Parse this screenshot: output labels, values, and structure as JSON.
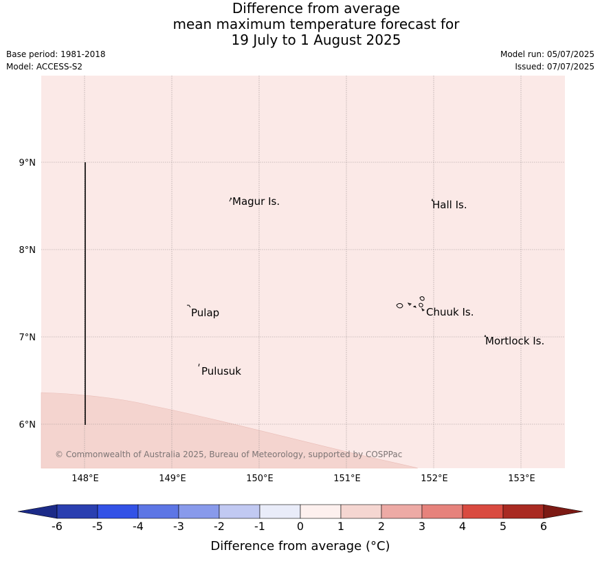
{
  "header": {
    "title_lines": [
      "Difference from average",
      "mean maximum temperature forecast for",
      "19 July to 1 August 2025"
    ],
    "base_period": "Base period: 1981-2018",
    "model": "Model: ACCESS-S2",
    "model_run": "Model run: 05/07/2025",
    "issued": "Issued: 07/07/2025"
  },
  "map": {
    "lon_ticks": [
      "148°E",
      "149°E",
      "150°E",
      "151°E",
      "152°E",
      "153°E"
    ],
    "lat_ticks": [
      "9°N",
      "8°N",
      "7°N",
      "6°N"
    ],
    "places": [
      {
        "name": "Magur Is."
      },
      {
        "name": "Hall Is."
      },
      {
        "name": "Pulap"
      },
      {
        "name": "Chuuk Is."
      },
      {
        "name": "Mortlock Is."
      },
      {
        "name": "Pulusuk"
      }
    ],
    "copyright": "© Commonwealth of Australia 2025, Bureau of Meteorology, supported by COSPPac",
    "background_color": "#fbe9e7",
    "warm_band_color": "#f4d4cf"
  },
  "colorbar": {
    "tick_labels": [
      "-6",
      "-5",
      "-4",
      "-3",
      "-2",
      "-1",
      "0",
      "1",
      "2",
      "3",
      "4",
      "5",
      "6"
    ],
    "colors": [
      "#2a3fb0",
      "#3352e6",
      "#5d76e5",
      "#889aeb",
      "#c1c9f2",
      "#e9ecf9",
      "#fdf0ee",
      "#f5d6d1",
      "#edaaa5",
      "#e6827c",
      "#d94a40",
      "#a92a22"
    ],
    "under_color": "#1c2b88",
    "over_color": "#7c1a14",
    "label": "Difference from average (°C)"
  }
}
